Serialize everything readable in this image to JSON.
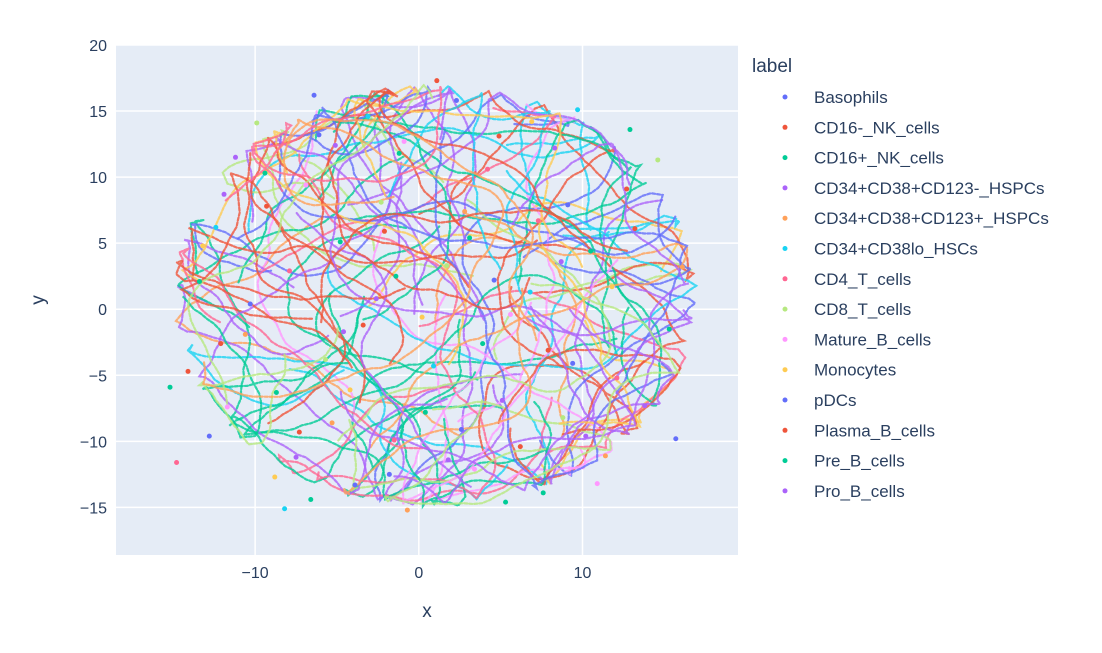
{
  "chart_data": {
    "type": "scatter",
    "title": "",
    "xlabel": "x",
    "ylabel": "y",
    "xlim": [
      -18.5,
      19.5
    ],
    "ylim": [
      -18.6,
      20
    ],
    "x_ticks": [
      -10,
      0,
      10
    ],
    "y_ticks": [
      20,
      15,
      10,
      5,
      0,
      -5,
      -10,
      -15
    ],
    "grid": true,
    "plot_background": "#E5ECF6",
    "grid_color": "#ffffff",
    "legend_title": "label",
    "legend_position": "right",
    "series": [
      {
        "name": "Basophils",
        "color": "#636EFA",
        "points": [
          [
            -6.1,
            13.2
          ],
          [
            2.3,
            15.8
          ],
          [
            9.4,
            -4.1
          ],
          [
            -12.8,
            -9.6
          ],
          [
            4.6,
            2.2
          ],
          [
            -1.8,
            -12.5
          ]
        ]
      },
      {
        "name": "CD16-_NK_cells",
        "color": "#EF553B",
        "points": [
          [
            -9.3,
            7.8
          ],
          [
            6.2,
            -10.4
          ],
          [
            12.7,
            9.1
          ],
          [
            -3.4,
            -1.2
          ],
          [
            1.1,
            17.3
          ],
          [
            -14.1,
            -4.7
          ]
        ]
      },
      {
        "name": "CD16+_NK_cells",
        "color": "#00CC96",
        "points": [
          [
            -4.8,
            5.1
          ],
          [
            3.9,
            -2.6
          ],
          [
            -8.7,
            -6.3
          ],
          [
            10.5,
            4.4
          ],
          [
            -1.2,
            11.8
          ],
          [
            7.6,
            -13.9
          ],
          [
            -13.4,
            2.1
          ],
          [
            0.4,
            -7.8
          ],
          [
            15.3,
            -1.5
          ],
          [
            -6.6,
            -14.4
          ]
        ]
      },
      {
        "name": "CD34+CD38+CD123-_HSPCs",
        "color": "#AB63FA",
        "points": [
          [
            -2.6,
            0.8
          ],
          [
            8.3,
            12.2
          ],
          [
            -11.2,
            11.5
          ],
          [
            5.1,
            -6.9
          ],
          [
            -7.5,
            -11.2
          ],
          [
            13.8,
            -7.3
          ]
        ]
      },
      {
        "name": "CD34+CD38+CD123+_HSPCs",
        "color": "#FFA15A",
        "points": [
          [
            -10.6,
            -1.9
          ],
          [
            2.8,
            7.4
          ],
          [
            -5.3,
            -8.6
          ],
          [
            11.4,
            -11.1
          ],
          [
            -0.7,
            -15.2
          ],
          [
            16.1,
            3.2
          ]
        ]
      },
      {
        "name": "CD34+CD38lo_HSCs",
        "color": "#19D3F3",
        "points": [
          [
            -3.1,
            14.6
          ],
          [
            6.8,
            1.3
          ],
          [
            -12.4,
            6.2
          ],
          [
            0.9,
            -4.3
          ],
          [
            9.7,
            15.1
          ],
          [
            -8.2,
            -15.1
          ]
        ]
      },
      {
        "name": "CD4_T_cells",
        "color": "#FF6692",
        "points": [
          [
            -7.9,
            2.9
          ],
          [
            4.2,
            10.6
          ],
          [
            -1.5,
            -9.9
          ],
          [
            12.1,
            -5.2
          ],
          [
            -14.8,
            -11.6
          ],
          [
            7.3,
            6.7
          ]
        ]
      },
      {
        "name": "CD8_T_cells",
        "color": "#B6E880",
        "points": [
          [
            -5.7,
            -3.8
          ],
          [
            1.7,
            3.3
          ],
          [
            -9.9,
            14.1
          ],
          [
            8.8,
            -8.2
          ],
          [
            14.6,
            11.3
          ],
          [
            -2.3,
            8.1
          ]
        ]
      },
      {
        "name": "Mature_B_cells",
        "color": "#FF97FF",
        "points": [
          [
            -0.9,
            12.7
          ],
          [
            5.6,
            -0.4
          ],
          [
            -6.9,
            9.4
          ],
          [
            10.9,
            -13.2
          ],
          [
            -11.7,
            -7.4
          ],
          [
            3.4,
            -12.1
          ]
        ]
      },
      {
        "name": "Monocytes",
        "color": "#FECB52",
        "points": [
          [
            -13.2,
            4.8
          ],
          [
            6.9,
            14.2
          ],
          [
            -4.2,
            -6.1
          ],
          [
            11.8,
            1.7
          ],
          [
            0.2,
            -0.6
          ],
          [
            -8.8,
            -12.7
          ]
        ]
      },
      {
        "name": "pDCs",
        "color": "#636EFA",
        "points": [
          [
            -3.9,
            -13.3
          ],
          [
            9.1,
            7.9
          ],
          [
            -10.3,
            0.4
          ],
          [
            2.6,
            -9.1
          ],
          [
            15.7,
            -9.8
          ],
          [
            -6.4,
            16.2
          ]
        ]
      },
      {
        "name": "Plasma_B_cells",
        "color": "#EF553B",
        "points": [
          [
            -2.1,
            5.9
          ],
          [
            7.9,
            -3.1
          ],
          [
            -12.1,
            -2.6
          ],
          [
            4.9,
            13.1
          ],
          [
            -7.3,
            -9.3
          ],
          [
            13.2,
            6.1
          ]
        ]
      },
      {
        "name": "Pre_B_cells",
        "color": "#00CC96",
        "points": [
          [
            -1.4,
            2.5
          ],
          [
            5.3,
            -14.6
          ],
          [
            -9.4,
            10.3
          ],
          [
            12.9,
            13.6
          ],
          [
            -15.2,
            -5.9
          ],
          [
            3.1,
            5.4
          ]
        ]
      },
      {
        "name": "Pro_B_cells",
        "color": "#AB63FA",
        "points": [
          [
            -4.6,
            -1.7
          ],
          [
            8.7,
            3.6
          ],
          [
            -11.9,
            8.7
          ],
          [
            1.8,
            -11.4
          ],
          [
            10.2,
            -9.6
          ],
          [
            -5.1,
            12.4
          ]
        ]
      }
    ]
  }
}
